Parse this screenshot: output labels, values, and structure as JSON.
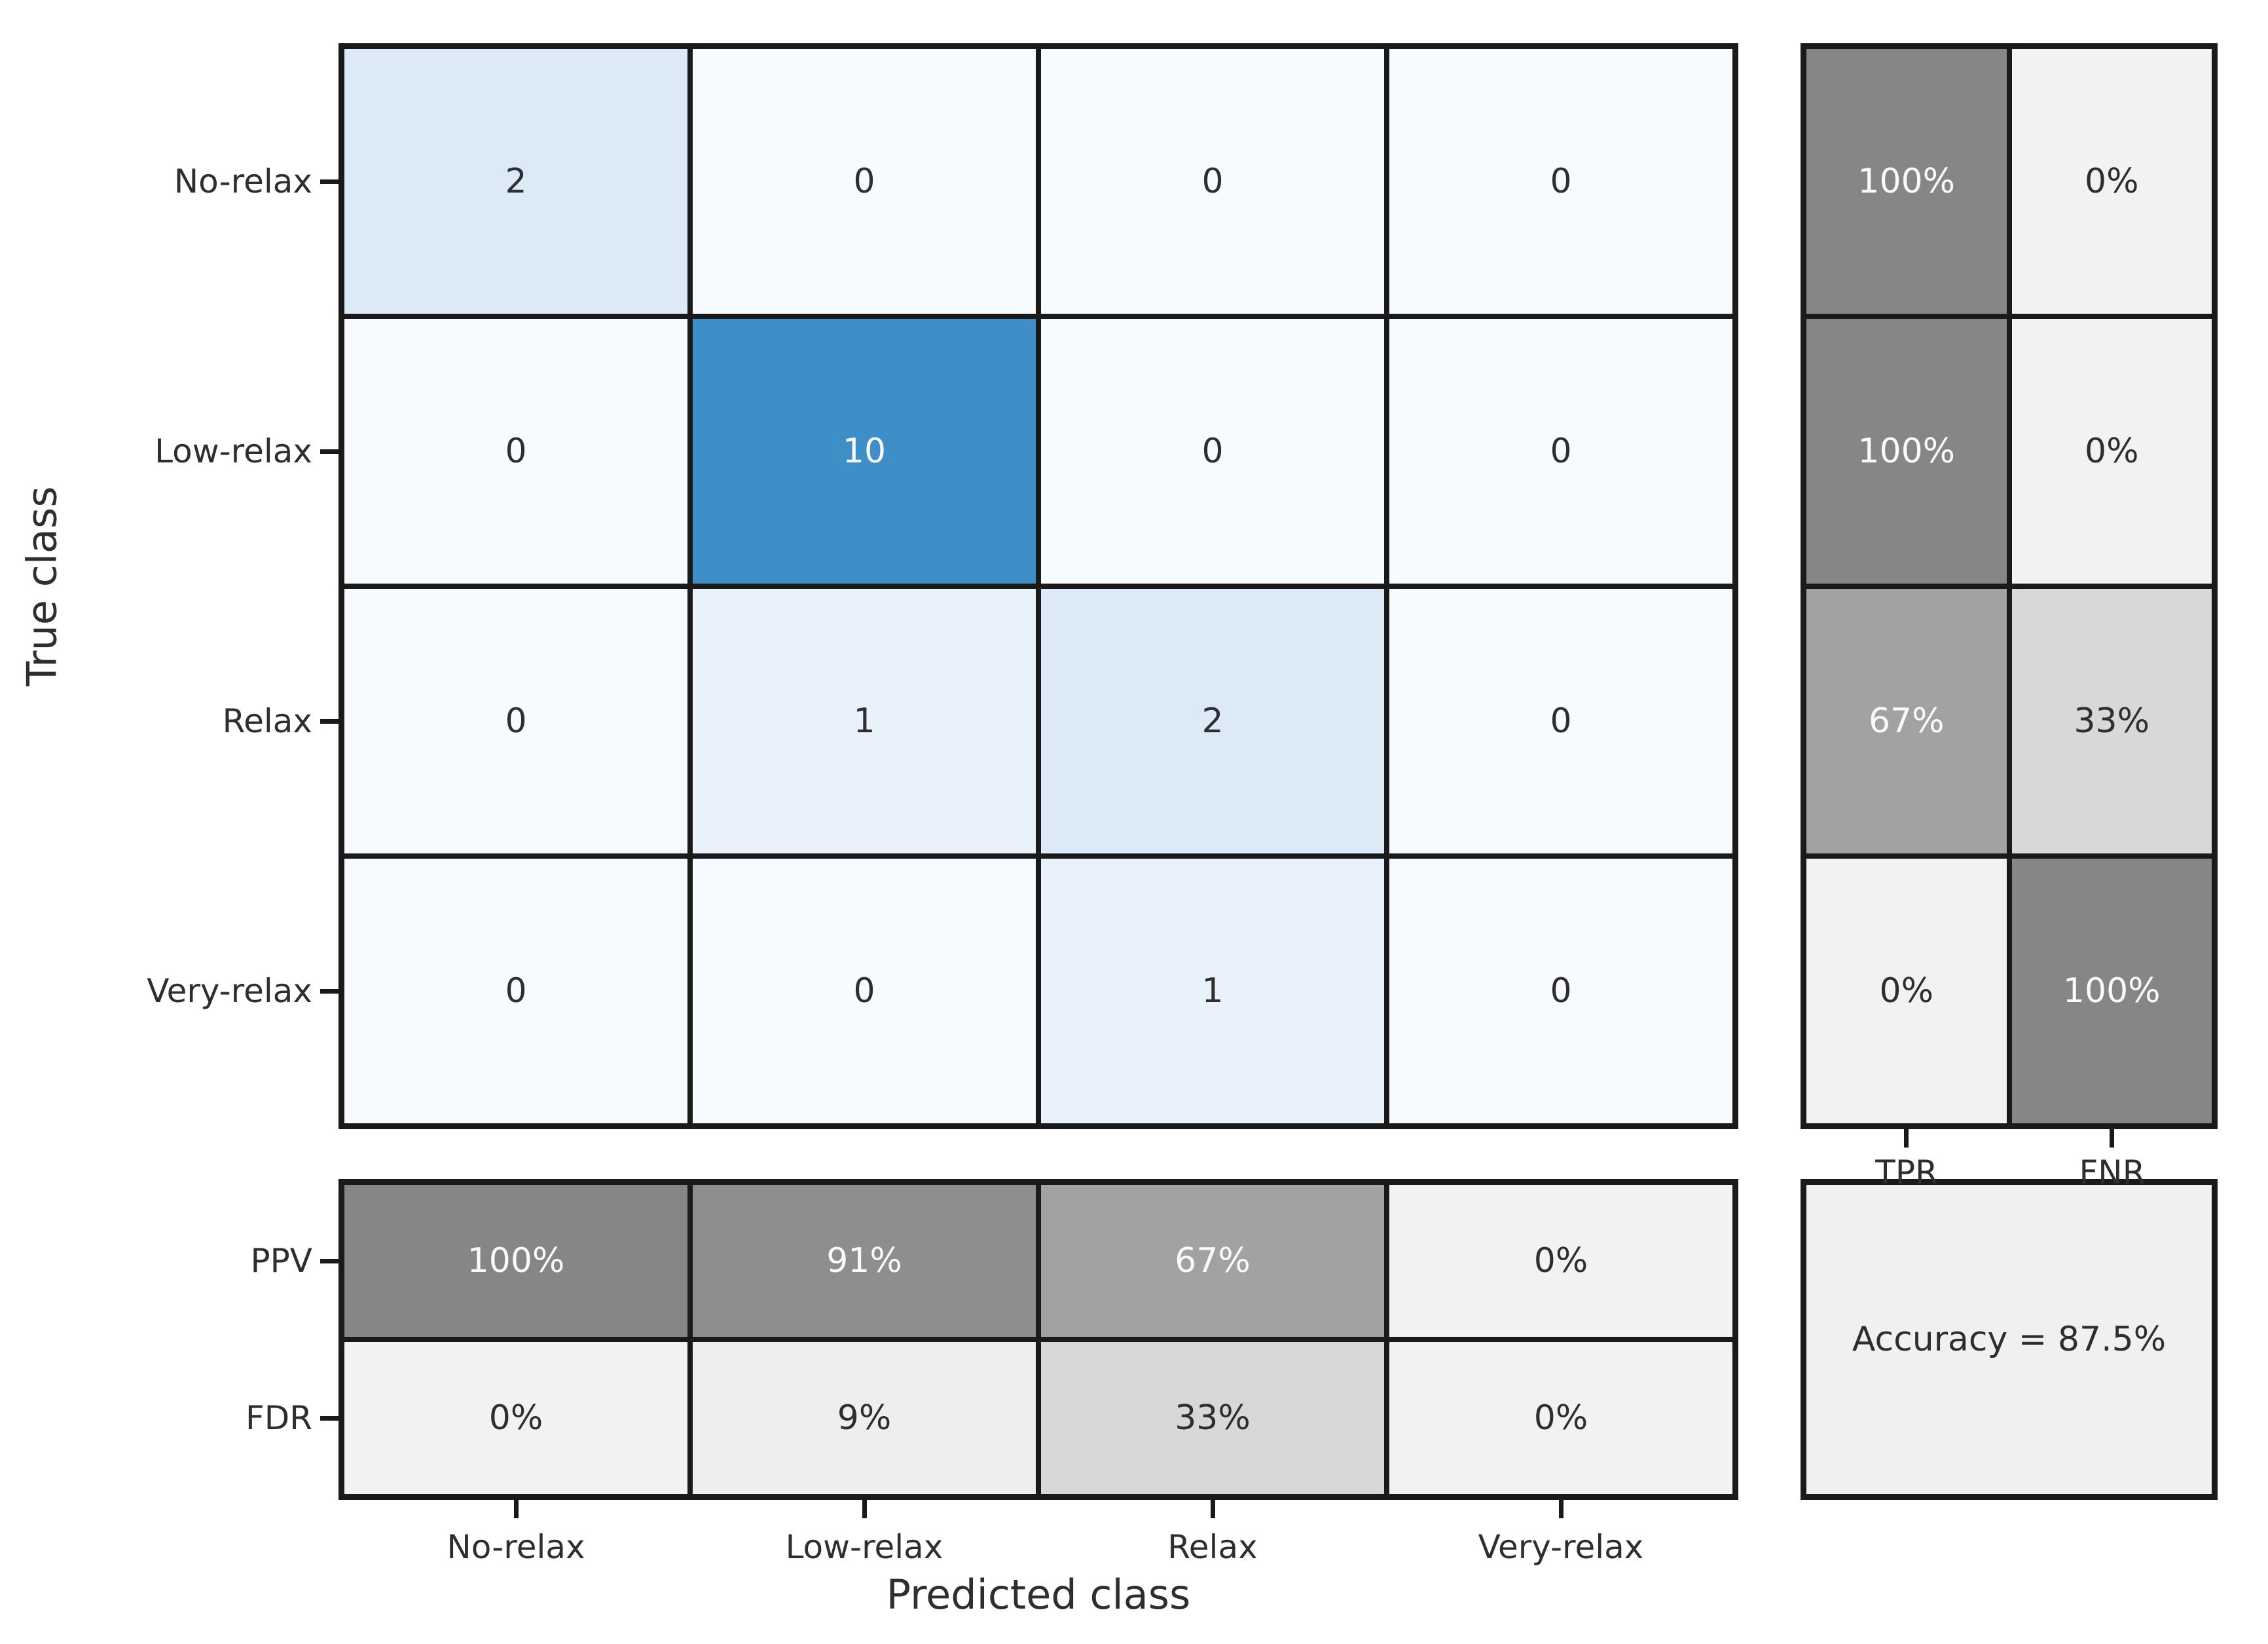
{
  "chart_data": {
    "type": "heatmap",
    "subtype": "confusion-matrix",
    "title": "",
    "xlabel": "Predicted class",
    "ylabel": "True class",
    "classes": [
      "No-relax",
      "Low-relax",
      "Relax",
      "Very-relax"
    ],
    "matrix": [
      [
        2,
        0,
        0,
        0
      ],
      [
        0,
        10,
        0,
        0
      ],
      [
        0,
        1,
        2,
        0
      ],
      [
        0,
        0,
        1,
        0
      ]
    ],
    "row_summary": {
      "columns": [
        "TPR",
        "FNR"
      ],
      "rows": [
        [
          "100%",
          "0%"
        ],
        [
          "100%",
          "0%"
        ],
        [
          "67%",
          "33%"
        ],
        [
          "0%",
          "100%"
        ]
      ]
    },
    "column_summary": {
      "row_labels": [
        "PPV",
        "FDR"
      ],
      "rows": [
        [
          "100%",
          "91%",
          "67%",
          "0%"
        ],
        [
          "0%",
          "9%",
          "33%",
          "0%"
        ]
      ]
    },
    "accuracy_text": "Accuracy = 87.5%",
    "colors": {
      "figure_bg": "#ffffff",
      "grid_line": "#1a1a1a",
      "dark_text": "#2e2e2e",
      "light_text": "#fafafa",
      "accuracy_bg": "#f0f0f0",
      "count_scale": {
        "0": "#f7fbff",
        "1": "#e9f1fa",
        "2": "#dce9f6",
        "10": "#3e8ec7"
      },
      "percent_scale": {
        "0": "#f2f2f2",
        "9": "#eeeeee",
        "33": "#d8d8d8",
        "67": "#a2a2a2",
        "91": "#8e8e8e",
        "100": "#868686"
      }
    },
    "layout": {
      "grid": "on",
      "legend": "none",
      "colorbar": "none"
    }
  }
}
